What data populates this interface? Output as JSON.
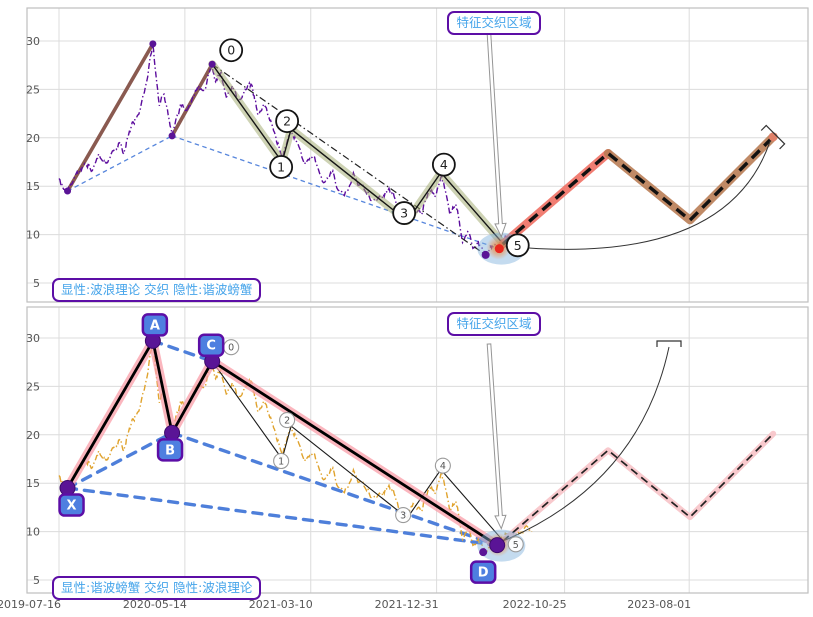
{
  "panels": {
    "top": {
      "annotation": "特征交织区域",
      "caption": "显性:波浪理论 交织 隐性:谐波螃蟹"
    },
    "bottom": {
      "annotation": "特征交织区域",
      "caption": "显性:谐波螃蟹 交织 隐性:波浪理论"
    }
  },
  "colors": {
    "price_top": "#5c0d9d",
    "price_bottom": "#e0a32e",
    "harmonic_brown": "#8a5a50",
    "support_blue": "#4579d9",
    "wave_glow": "rgba(158,168,106,0.5)",
    "crab_glow": "rgba(250,158,168,0.75)",
    "forecast_glow_red": "rgba(240,112,100,0.9)",
    "forecast_glow_brown": "rgba(185,125,85,0.9)",
    "forecast_glow_pink": "rgba(247,195,200,0.9)",
    "forecast_end_dot": "#e08068",
    "label_box_fill": "#4e7fe0",
    "label_box_border": "#5c0ea6",
    "annotation_text": "#45a4ea",
    "annotation_border": "#5c0ea6",
    "highlight_red": "#e8281e",
    "highlight_orange": "#f37c20",
    "highlight_ellipse": "rgba(125,175,220,0.45)",
    "grid": "#dcdcdc",
    "spine": "#bfbfbf",
    "tick_text": "#555555",
    "wave_circle_top_stroke": "#141414",
    "wave_circle_bottom_stroke": "#9a9a9a",
    "pivot_purple": "#5a1496"
  },
  "chart_data": {
    "type": "line",
    "x_unit": "days since 2019-07-16",
    "x_ticks": [
      "2019-07-16",
      "2020-05-14",
      "2021-03-10",
      "2021-12-31",
      "2022-10-25",
      "2023-08-01"
    ],
    "x_tick_days": [
      0,
      295,
      590,
      885,
      1185,
      1477
    ],
    "xlim_days": [
      -75,
      1756
    ],
    "y_ticks": [
      5,
      10,
      15,
      20,
      25,
      30
    ],
    "ylim": [
      3.0,
      33.4
    ],
    "grid": true,
    "price_series": {
      "name": "price",
      "style": "dashdot-noisy",
      "points": [
        [
          0,
          15.8
        ],
        [
          8,
          14.9
        ],
        [
          20,
          14.5
        ],
        [
          40,
          16.4
        ],
        [
          60,
          17.3
        ],
        [
          78,
          16.6
        ],
        [
          95,
          18.2
        ],
        [
          112,
          17.3
        ],
        [
          130,
          18.8
        ],
        [
          143,
          19.6
        ],
        [
          152,
          18.3
        ],
        [
          165,
          20.6
        ],
        [
          178,
          21.8
        ],
        [
          190,
          22.8
        ],
        [
          200,
          24.6
        ],
        [
          208,
          26.2
        ],
        [
          214,
          28.3
        ],
        [
          220,
          29.7
        ],
        [
          227,
          26.4
        ],
        [
          235,
          23.2
        ],
        [
          246,
          24.6
        ],
        [
          256,
          22.5
        ],
        [
          265,
          20.3
        ],
        [
          274,
          21.8
        ],
        [
          285,
          23.4
        ],
        [
          298,
          22.7
        ],
        [
          314,
          24.2
        ],
        [
          330,
          25.1
        ],
        [
          342,
          24.9
        ],
        [
          352,
          26.9
        ],
        [
          359,
          27.6
        ],
        [
          367,
          25.7
        ],
        [
          380,
          26.7
        ],
        [
          392,
          24.1
        ],
        [
          406,
          25.3
        ],
        [
          422,
          23.7
        ],
        [
          436,
          25.1
        ],
        [
          452,
          25.4
        ],
        [
          466,
          22.4
        ],
        [
          480,
          23.5
        ],
        [
          496,
          21.7
        ],
        [
          510,
          19.7
        ],
        [
          523,
          17.8
        ],
        [
          532,
          19.2
        ],
        [
          544,
          20.9
        ],
        [
          558,
          19.6
        ],
        [
          576,
          17.2
        ],
        [
          596,
          18.3
        ],
        [
          620,
          15.3
        ],
        [
          642,
          16.5
        ],
        [
          666,
          14.0
        ],
        [
          690,
          16.2
        ],
        [
          712,
          15.1
        ],
        [
          736,
          13.4
        ],
        [
          760,
          14.0
        ],
        [
          778,
          14.4
        ],
        [
          798,
          12.2
        ],
        [
          816,
          11.4
        ],
        [
          832,
          12.8
        ],
        [
          850,
          12.2
        ],
        [
          870,
          14.4
        ],
        [
          884,
          14.0
        ],
        [
          895,
          16.1
        ],
        [
          904,
          14.8
        ],
        [
          916,
          12.2
        ],
        [
          930,
          13.1
        ],
        [
          946,
          9.2
        ],
        [
          958,
          10.4
        ],
        [
          970,
          8.6
        ],
        [
          982,
          9.3
        ],
        [
          1000,
          7.9
        ],
        [
          1012,
          8.8
        ],
        [
          1027,
          8.6
        ],
        [
          1040,
          9.2
        ],
        [
          1052,
          9.8
        ],
        [
          1066,
          9.5
        ],
        [
          1082,
          9.9
        ],
        [
          1096,
          10.6
        ],
        [
          1108,
          10.0
        ]
      ]
    },
    "harmonic_crab": {
      "letters": [
        "X",
        "A",
        "B",
        "C",
        "D"
      ],
      "X": [
        20,
        14.5
      ],
      "A": [
        220,
        29.7
      ],
      "B": [
        265,
        20.2
      ],
      "C": [
        359,
        27.6
      ],
      "D": [
        1027,
        8.6
      ],
      "support_lines_bottom": [
        [
          "X",
          "B"
        ],
        [
          "A",
          "C"
        ],
        [
          "B",
          "D"
        ],
        [
          "X",
          "D"
        ]
      ],
      "support_lines_top": [
        [
          "X",
          "B"
        ],
        [
          "B",
          "D"
        ]
      ],
      "solid_lines_top": [
        [
          "X",
          "A"
        ],
        [
          "B",
          "C"
        ]
      ]
    },
    "elliott_waves": {
      "labels": [
        "0",
        "1",
        "2",
        "3",
        "4",
        "5"
      ],
      "0": [
        359,
        27.6
      ],
      "1": [
        523,
        17.5
      ],
      "2": [
        544,
        20.9
      ],
      "3": [
        816,
        11.4
      ],
      "4": [
        895,
        16.4
      ],
      "5": [
        1040,
        9.1
      ],
      "trendline_0_to_D": [
        [
          359,
          27.6
        ],
        [
          1000,
          7.9
        ]
      ]
    },
    "forecast_zigzag": [
      [
        1040,
        9.0
      ],
      [
        1287,
        18.4
      ],
      [
        1479,
        11.5
      ],
      [
        1674,
        20.1
      ]
    ],
    "convergence_point": [
      1032,
      8.55
    ],
    "panel_top_series_end_day": 1066,
    "panel_bottom_series_end_day": 1108
  }
}
